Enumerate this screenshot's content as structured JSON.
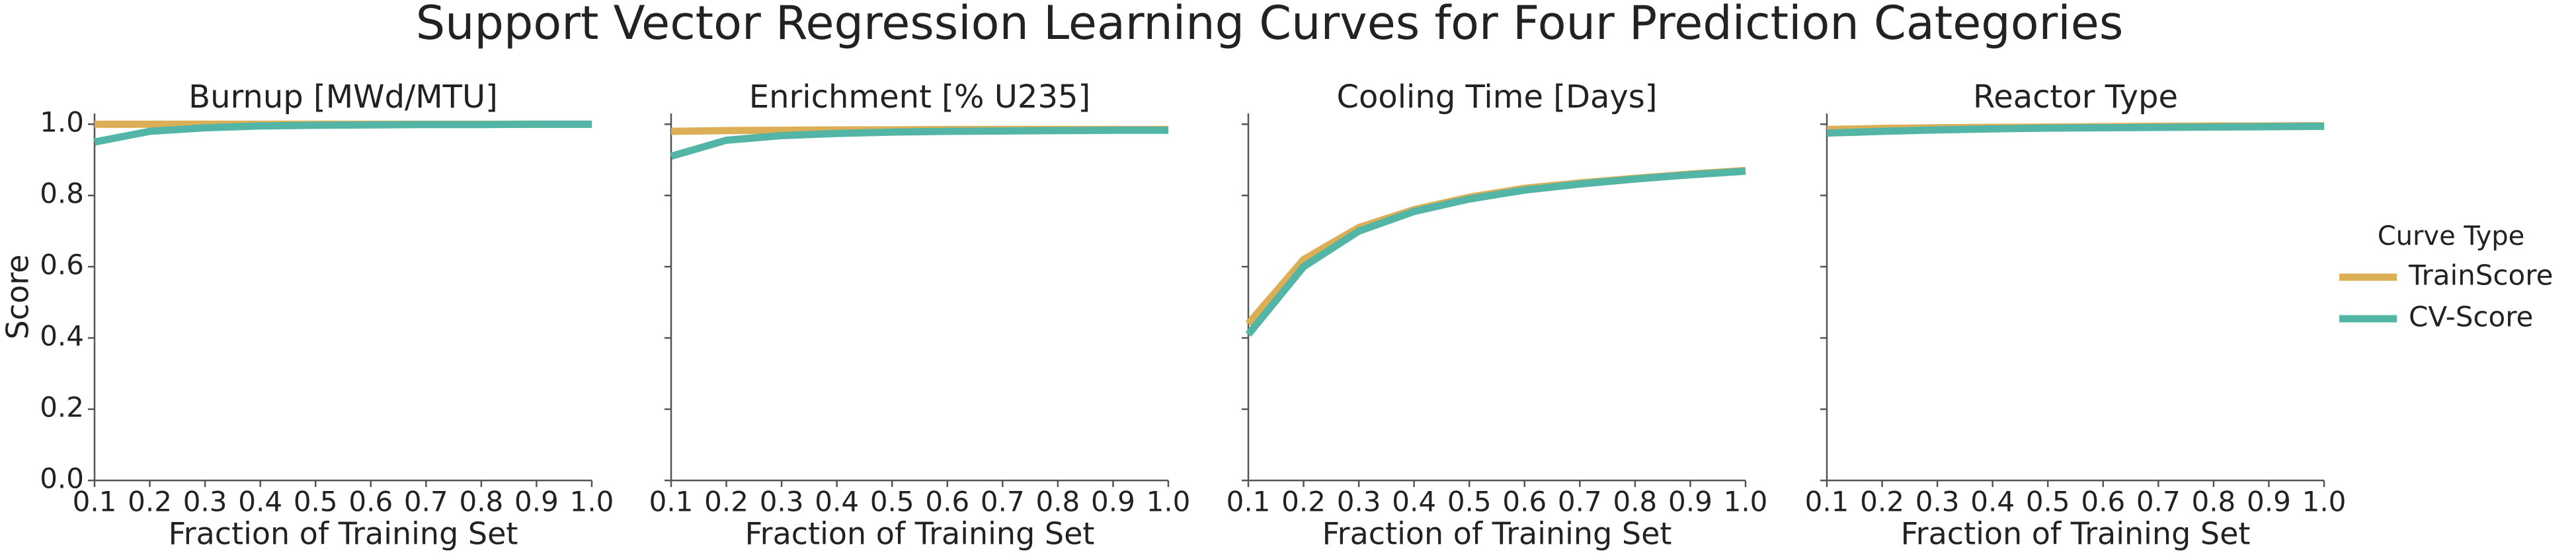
{
  "title": "Support Vector Regression Learning Curves for Four Prediction Categories",
  "legend_title": "Curve Type",
  "chart_data": [
    {
      "type": "line",
      "title": "Burnup [MWd/MTU]",
      "xlabel": "Fraction of Training Set",
      "ylabel": "Score",
      "show_ytick_labels": true,
      "x": [
        0.1,
        0.2,
        0.3,
        0.4,
        0.5,
        0.6,
        0.7,
        0.8,
        0.9,
        1
      ],
      "series": [
        {
          "name": "TrainScore",
          "color": "#dcae55",
          "values": [
            1,
            1,
            1,
            1,
            1,
            1,
            1,
            1,
            1,
            1
          ]
        },
        {
          "name": "CV-Score",
          "color": "#52b5a6",
          "values": [
            0.95,
            0.98,
            0.99,
            0.995,
            0.997,
            0.998,
            0.999,
            0.999,
            1,
            1
          ]
        }
      ],
      "xlim": [
        0.1,
        1
      ],
      "xticks": [
        0.1,
        0.2,
        0.3,
        0.4,
        0.5,
        0.6,
        0.7,
        0.8,
        0.9,
        {
          "value": 1,
          "label": "1.0"
        }
      ],
      "ylim": [
        0,
        1.03
      ],
      "yticks": [
        {
          "value": 0,
          "label": "0.0"
        },
        0.2,
        0.4,
        0.6,
        0.8,
        {
          "value": 1,
          "label": "1.0"
        }
      ]
    },
    {
      "type": "line",
      "title": "Enrichment [% U235]",
      "xlabel": "Fraction of Training Set",
      "show_ytick_labels": false,
      "x": [
        0.1,
        0.2,
        0.3,
        0.4,
        0.5,
        0.6,
        0.7,
        0.8,
        0.9,
        1
      ],
      "series": [
        {
          "name": "TrainScore",
          "color": "#dcae55",
          "values": [
            0.98,
            0.982,
            0.983,
            0.984,
            0.984,
            0.985,
            0.985,
            0.985,
            0.985,
            0.985
          ]
        },
        {
          "name": "CV-Score",
          "color": "#52b5a6",
          "values": [
            0.91,
            0.955,
            0.968,
            0.974,
            0.978,
            0.98,
            0.981,
            0.982,
            0.983,
            0.983
          ]
        }
      ],
      "xlim": [
        0.1,
        1
      ],
      "xticks": [
        0.1,
        0.2,
        0.3,
        0.4,
        0.5,
        0.6,
        0.7,
        0.8,
        0.9,
        {
          "value": 1,
          "label": "1.0"
        }
      ],
      "ylim": [
        0,
        1.03
      ],
      "yticks": [
        0,
        0.2,
        0.4,
        0.6,
        0.8,
        1
      ]
    },
    {
      "type": "line",
      "title": "Cooling Time [Days]",
      "xlabel": "Fraction of Training Set",
      "show_ytick_labels": false,
      "x": [
        0.1,
        0.2,
        0.3,
        0.4,
        0.5,
        0.6,
        0.7,
        0.8,
        0.9,
        1
      ],
      "series": [
        {
          "name": "TrainScore",
          "color": "#dcae55",
          "values": [
            0.44,
            0.62,
            0.71,
            0.76,
            0.795,
            0.82,
            0.835,
            0.848,
            0.86,
            0.87
          ]
        },
        {
          "name": "CV-Score",
          "color": "#52b5a6",
          "values": [
            0.41,
            0.6,
            0.7,
            0.755,
            0.79,
            0.815,
            0.832,
            0.846,
            0.858,
            0.868
          ]
        }
      ],
      "xlim": [
        0.1,
        1
      ],
      "xticks": [
        0.1,
        0.2,
        0.3,
        0.4,
        0.5,
        0.6,
        0.7,
        0.8,
        0.9,
        {
          "value": 1,
          "label": "1.0"
        }
      ],
      "ylim": [
        0,
        1.03
      ],
      "yticks": [
        0,
        0.2,
        0.4,
        0.6,
        0.8,
        1
      ]
    },
    {
      "type": "line",
      "title": "Reactor Type",
      "xlabel": "Fraction of Training Set",
      "show_ytick_labels": false,
      "x": [
        0.1,
        0.2,
        0.3,
        0.4,
        0.5,
        0.6,
        0.7,
        0.8,
        0.9,
        1
      ],
      "series": [
        {
          "name": "TrainScore",
          "color": "#dcae55",
          "values": [
            0.985,
            0.988,
            0.99,
            0.991,
            0.992,
            0.993,
            0.994,
            0.995,
            0.995,
            0.996
          ]
        },
        {
          "name": "CV-Score",
          "color": "#52b5a6",
          "values": [
            0.975,
            0.98,
            0.984,
            0.987,
            0.989,
            0.99,
            0.991,
            0.992,
            0.993,
            0.994
          ]
        }
      ],
      "xlim": [
        0.1,
        1
      ],
      "xticks": [
        0.1,
        0.2,
        0.3,
        0.4,
        0.5,
        0.6,
        0.7,
        0.8,
        0.9,
        {
          "value": 1,
          "label": "1.0"
        }
      ],
      "ylim": [
        0,
        1.03
      ],
      "yticks": [
        0,
        0.2,
        0.4,
        0.6,
        0.8,
        1
      ]
    }
  ]
}
